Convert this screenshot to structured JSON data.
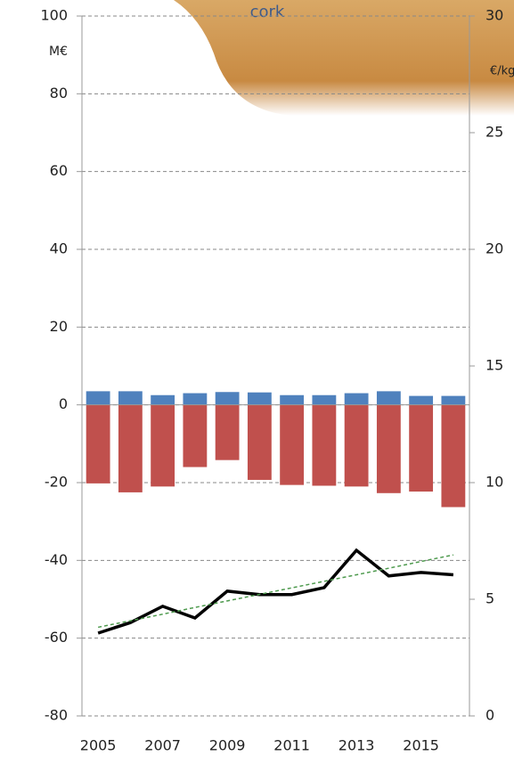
{
  "chart_data": {
    "type": "bar",
    "categories": [
      "2005",
      null,
      "2007",
      null,
      "2009",
      null,
      "2011",
      null,
      "2013",
      null,
      "2015",
      null
    ],
    "series": [
      {
        "color": "#4f81bd",
        "values": [
          3.5,
          3.5,
          2.5,
          3,
          3.3,
          3.2,
          2.5,
          2.5,
          3,
          3.5,
          2.3,
          2.3
        ]
      },
      {
        "color": "#c0504d",
        "values": [
          -20.2,
          -22.5,
          -21,
          -16,
          -14.2,
          -19.3,
          -20.6,
          -20.8,
          -21,
          -22.7,
          -22.3,
          -26.3
        ]
      },
      {
        "type": "line",
        "axis": "y2",
        "color": "#000000",
        "values": [
          3.55,
          4.0,
          4.7,
          4.2,
          5.35,
          5.2,
          5.2,
          5.5,
          7.1,
          6.0,
          6.15,
          6.05
        ]
      },
      {
        "type": "line",
        "axis": "y2",
        "color": "#4e9a4e",
        "dashed": true,
        "values": [
          3.8,
          4.08,
          4.36,
          4.65,
          4.93,
          5.21,
          5.49,
          5.77,
          6.05,
          6.33,
          6.62,
          6.9
        ]
      }
    ],
    "ylim": [
      -80,
      100
    ],
    "yticks": [
      -80,
      -60,
      -40,
      -20,
      0,
      20,
      40,
      60,
      80,
      100
    ],
    "y2lim": [
      0,
      30
    ],
    "y2ticks": [
      0,
      5,
      10,
      15,
      20,
      25,
      30
    ],
    "ylabel": "M€",
    "y2label": "€/kg",
    "annotation": "cork",
    "grid": true
  }
}
